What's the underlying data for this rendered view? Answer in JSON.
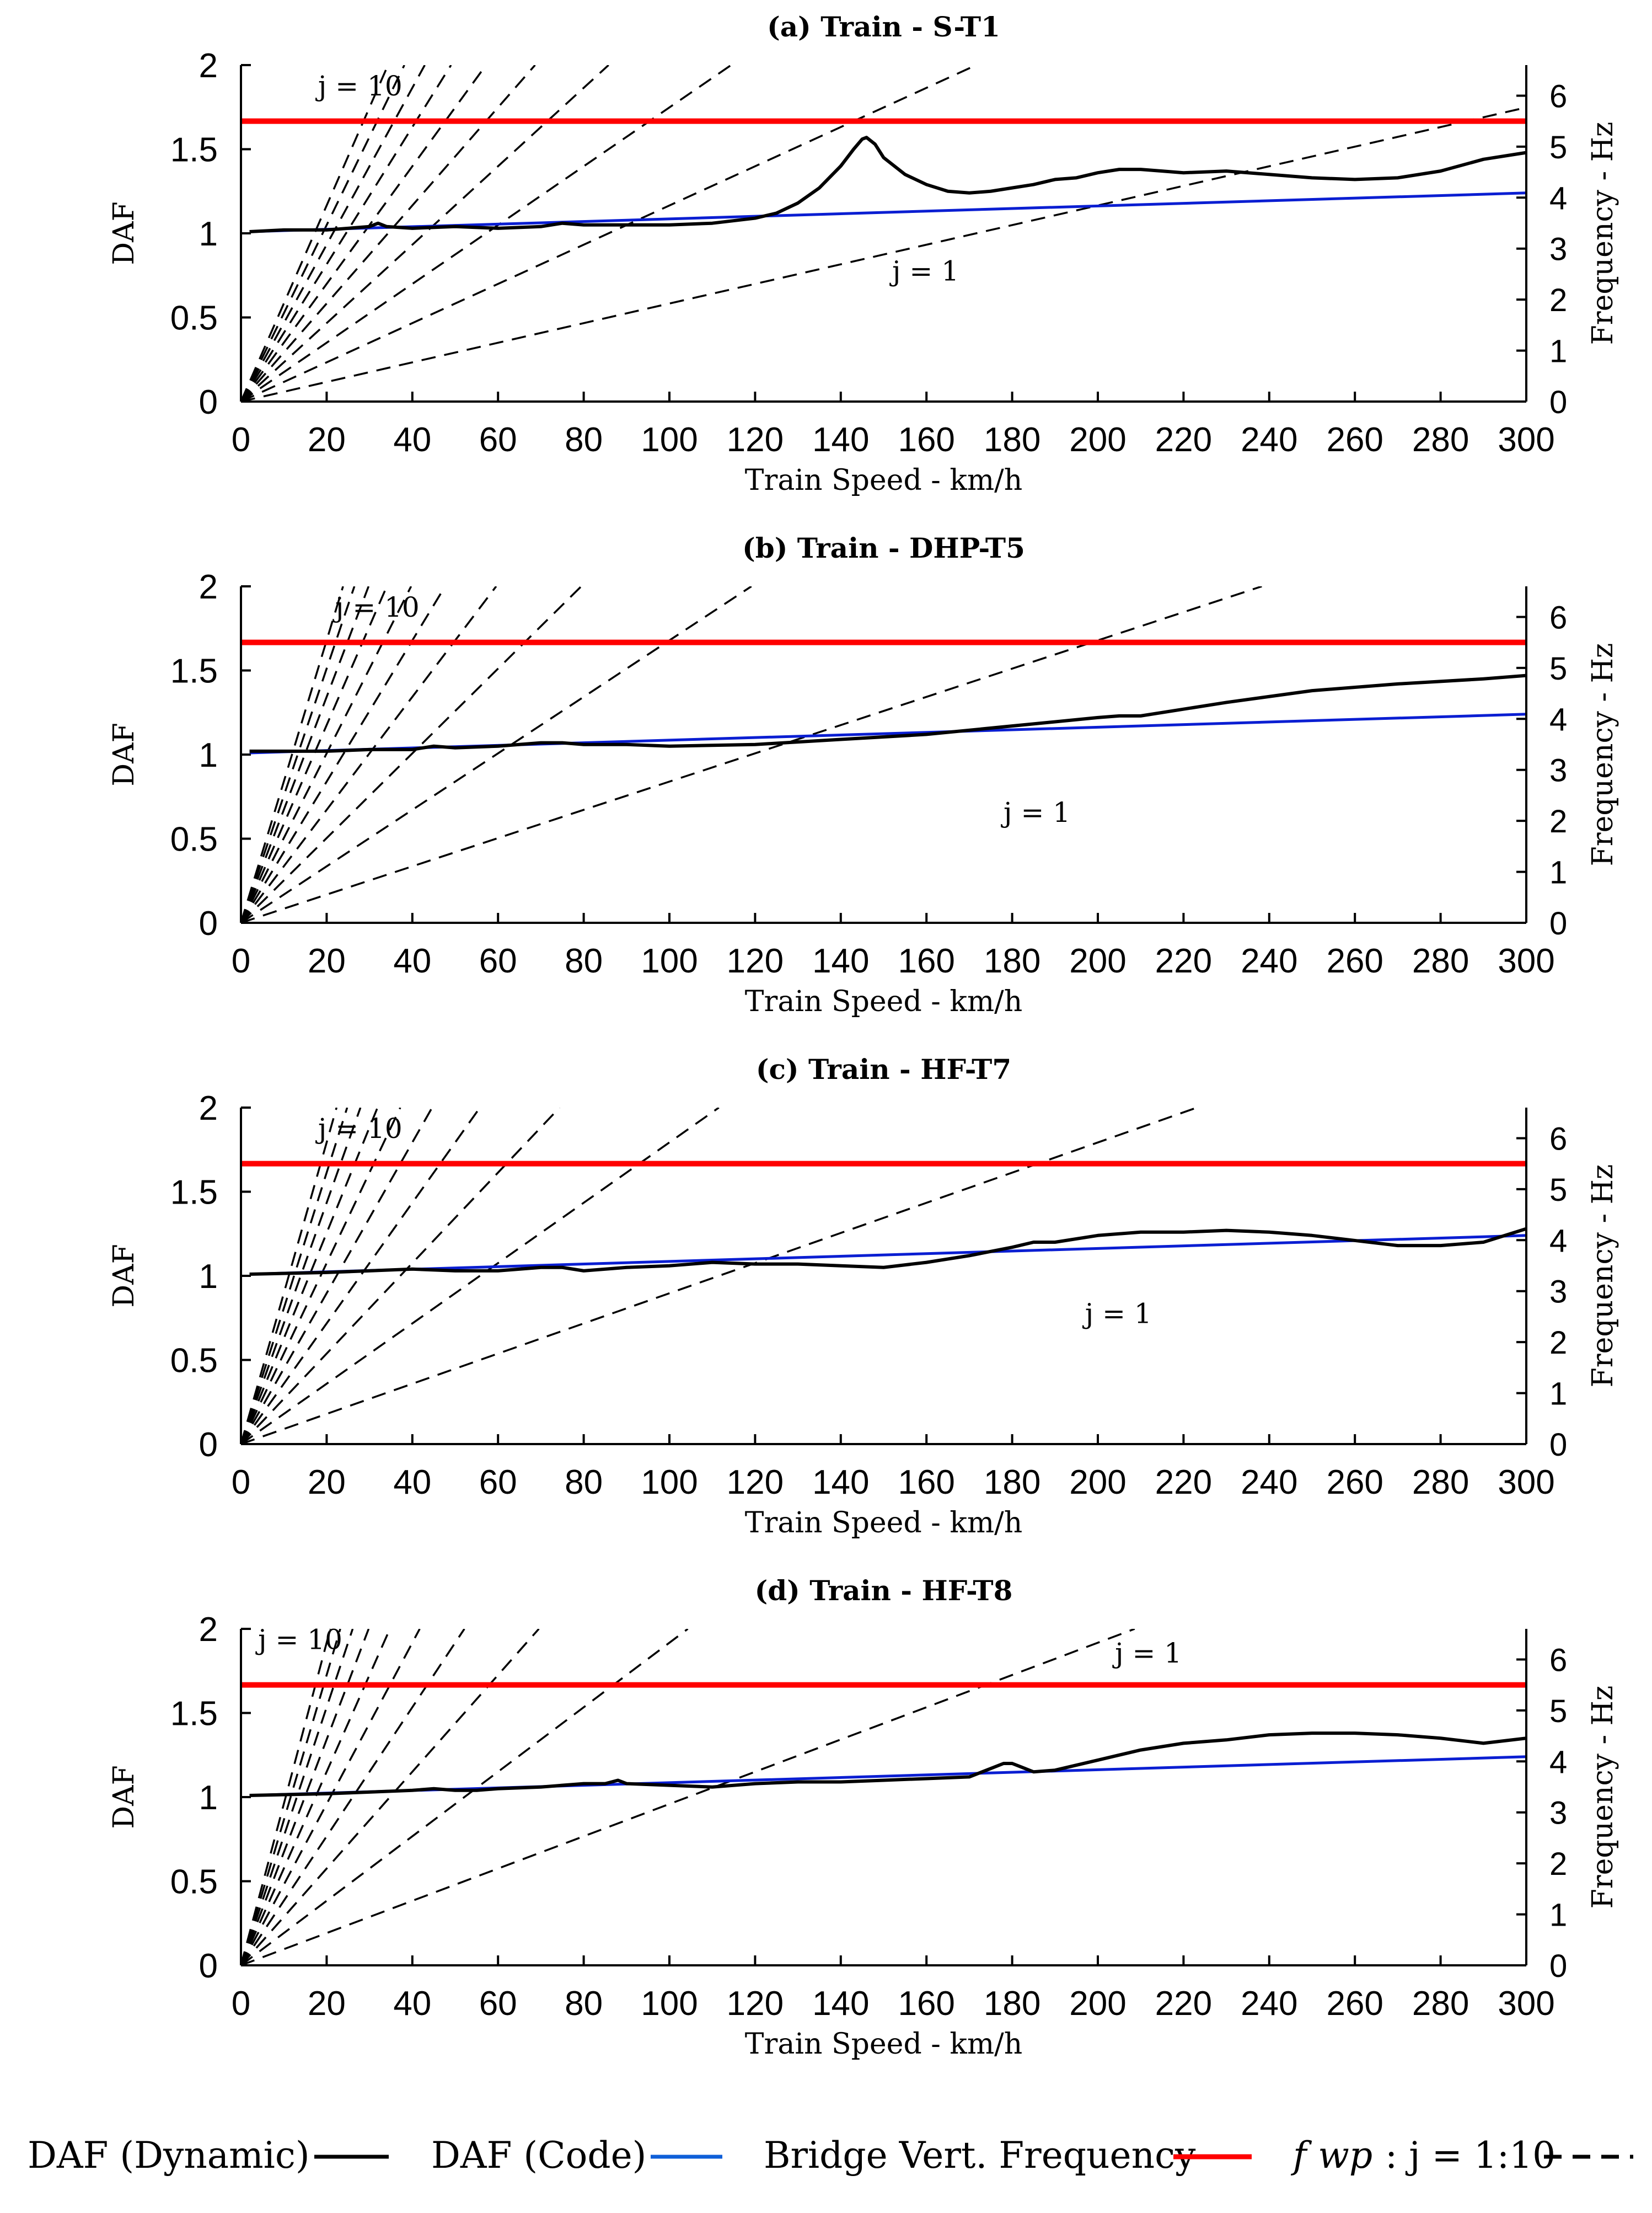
{
  "colors": {
    "dynamic": "#000000",
    "code": "#0a1ed2",
    "frequency": "#ff0000",
    "fwp": "#000000"
  },
  "legend": {
    "dynamic": "DAF (Dynamic)",
    "code": "DAF (Code)",
    "frequency": "Bridge Vert. Frequency",
    "fwp_symbol": "f wp",
    "fwp_rest": ": j = 1:10"
  },
  "chart_data": [
    {
      "type": "line",
      "title": "(a) Train - S-T1",
      "xlabel": "Train Speed - km/h",
      "ylabel": "DAF",
      "y2label": "Frequency - Hz",
      "xlim": [
        0,
        300
      ],
      "ylim": [
        0,
        2
      ],
      "y2lim": [
        0,
        6.6
      ],
      "xticks": [
        "0",
        "20",
        "40",
        "60",
        "80",
        "100",
        "120",
        "140",
        "160",
        "180",
        "200",
        "220",
        "240",
        "260",
        "280",
        "300"
      ],
      "yticks": [
        "0",
        "0.5",
        "1",
        "1.5",
        "2"
      ],
      "y2ticks": [
        "0",
        "1",
        "2",
        "3",
        "4",
        "5",
        "6"
      ],
      "bridge_frequency_hz": 5.5,
      "fwp_slopes_hz_per_kmh": [
        0.01923,
        0.03846,
        0.05769,
        0.07692,
        0.09615,
        0.11538,
        0.13462,
        0.15385,
        0.17308,
        0.19231
      ],
      "label_j10": "j = 10",
      "label_j1": "j = 1",
      "label_j10_pos": [
        18,
        1.82
      ],
      "label_j1_pos": [
        152,
        0.72
      ],
      "code": {
        "x": [
          2,
          300
        ],
        "y": [
          1.01,
          1.24
        ]
      },
      "dynamic": {
        "x": [
          2,
          10,
          20,
          30,
          32,
          34,
          40,
          50,
          60,
          70,
          75,
          80,
          90,
          100,
          110,
          120,
          125,
          130,
          135,
          140,
          143,
          145,
          146,
          148,
          150,
          155,
          160,
          165,
          170,
          175,
          180,
          185,
          190,
          195,
          200,
          205,
          210,
          215,
          220,
          230,
          240,
          250,
          260,
          270,
          280,
          290,
          300
        ],
        "y": [
          1.01,
          1.02,
          1.02,
          1.04,
          1.06,
          1.04,
          1.03,
          1.04,
          1.03,
          1.04,
          1.06,
          1.05,
          1.05,
          1.05,
          1.06,
          1.09,
          1.12,
          1.18,
          1.27,
          1.4,
          1.5,
          1.56,
          1.57,
          1.53,
          1.45,
          1.35,
          1.29,
          1.25,
          1.24,
          1.25,
          1.27,
          1.29,
          1.32,
          1.33,
          1.36,
          1.38,
          1.38,
          1.37,
          1.36,
          1.37,
          1.35,
          1.33,
          1.32,
          1.33,
          1.37,
          1.44,
          1.48
        ]
      }
    },
    {
      "type": "line",
      "title": "(b) Train - DHP-T5",
      "xlabel": "Train Speed - km/h",
      "ylabel": "DAF",
      "y2label": "Frequency - Hz",
      "xlim": [
        0,
        300
      ],
      "ylim": [
        0,
        2
      ],
      "y2lim": [
        0,
        6.6
      ],
      "xticks": [
        "0",
        "20",
        "40",
        "60",
        "80",
        "100",
        "120",
        "140",
        "160",
        "180",
        "200",
        "220",
        "240",
        "260",
        "280",
        "300"
      ],
      "yticks": [
        "0",
        "0.5",
        "1",
        "1.5",
        "2"
      ],
      "y2ticks": [
        "0",
        "1",
        "2",
        "3",
        "4",
        "5",
        "6"
      ],
      "bridge_frequency_hz": 5.5,
      "fwp_slopes_hz_per_kmh": [
        0.0277,
        0.0554,
        0.0831,
        0.1108,
        0.1385,
        0.1662,
        0.1939,
        0.2216,
        0.2493,
        0.277
      ],
      "label_j10": "j = 10",
      "label_j1": "j = 1",
      "label_j10_pos": [
        22,
        1.82
      ],
      "label_j1_pos": [
        178,
        0.6
      ],
      "code": {
        "x": [
          2,
          300
        ],
        "y": [
          1.01,
          1.24
        ]
      },
      "dynamic": {
        "x": [
          2,
          20,
          30,
          40,
          45,
          50,
          60,
          70,
          75,
          80,
          90,
          100,
          120,
          140,
          160,
          180,
          200,
          205,
          210,
          230,
          250,
          270,
          290,
          300
        ],
        "y": [
          1.02,
          1.02,
          1.03,
          1.03,
          1.05,
          1.04,
          1.05,
          1.07,
          1.07,
          1.06,
          1.06,
          1.05,
          1.06,
          1.09,
          1.12,
          1.17,
          1.22,
          1.23,
          1.23,
          1.31,
          1.38,
          1.42,
          1.45,
          1.47
        ]
      }
    },
    {
      "type": "line",
      "title": "(c) Train - HF-T7",
      "xlabel": "Train Speed - km/h",
      "ylabel": "DAF",
      "y2label": "Frequency - Hz",
      "xlim": [
        0,
        300
      ],
      "ylim": [
        0,
        2
      ],
      "y2lim": [
        0,
        6.6
      ],
      "xticks": [
        "0",
        "20",
        "40",
        "60",
        "80",
        "100",
        "120",
        "140",
        "160",
        "180",
        "200",
        "220",
        "240",
        "260",
        "280",
        "300"
      ],
      "yticks": [
        "0",
        "0.5",
        "1",
        "1.5",
        "2"
      ],
      "y2ticks": [
        "0",
        "1",
        "2",
        "3",
        "4",
        "5",
        "6"
      ],
      "bridge_frequency_hz": 5.5,
      "fwp_slopes_hz_per_kmh": [
        0.02958,
        0.05917,
        0.08875,
        0.11833,
        0.14792,
        0.1775,
        0.20708,
        0.23667,
        0.26625,
        0.29583
      ],
      "label_j10": "j = 10",
      "label_j1": "j = 1",
      "label_j10_pos": [
        18,
        1.82
      ],
      "label_j1_pos": [
        197,
        0.72
      ],
      "code": {
        "x": [
          2,
          300
        ],
        "y": [
          1.01,
          1.24
        ]
      },
      "dynamic": {
        "x": [
          2,
          20,
          30,
          40,
          50,
          60,
          70,
          75,
          80,
          90,
          100,
          110,
          120,
          130,
          140,
          150,
          160,
          170,
          180,
          185,
          190,
          200,
          210,
          220,
          230,
          240,
          250,
          260,
          270,
          280,
          290,
          300
        ],
        "y": [
          1.01,
          1.02,
          1.03,
          1.04,
          1.03,
          1.03,
          1.05,
          1.05,
          1.03,
          1.05,
          1.06,
          1.08,
          1.07,
          1.07,
          1.06,
          1.05,
          1.08,
          1.12,
          1.17,
          1.2,
          1.2,
          1.24,
          1.26,
          1.26,
          1.27,
          1.26,
          1.24,
          1.21,
          1.18,
          1.18,
          1.2,
          1.28
        ]
      }
    },
    {
      "type": "line",
      "title": "(d) Train - HF-T8",
      "xlabel": "Train Speed - km/h",
      "ylabel": "DAF",
      "y2label": "Frequency - Hz",
      "xlim": [
        0,
        300
      ],
      "ylim": [
        0,
        2
      ],
      "y2lim": [
        0,
        6.6
      ],
      "xticks": [
        "0",
        "20",
        "40",
        "60",
        "80",
        "100",
        "120",
        "140",
        "160",
        "180",
        "200",
        "220",
        "240",
        "260",
        "280",
        "300"
      ],
      "yticks": [
        "0",
        "0.5",
        "1",
        "1.5",
        "2"
      ],
      "y2ticks": [
        "0",
        "1",
        "2",
        "3",
        "4",
        "5",
        "6"
      ],
      "bridge_frequency_hz": 5.5,
      "fwp_slopes_hz_per_kmh": [
        0.03164,
        0.06328,
        0.09492,
        0.12656,
        0.1582,
        0.18984,
        0.22148,
        0.25312,
        0.28476,
        0.3164
      ],
      "label_j10": "j = 10",
      "label_j1": "j = 1",
      "label_j10_pos": [
        4,
        1.88
      ],
      "label_j1_pos": [
        204,
        1.8
      ],
      "code": {
        "x": [
          2,
          300
        ],
        "y": [
          1.01,
          1.24
        ]
      },
      "dynamic": {
        "x": [
          2,
          20,
          30,
          40,
          45,
          50,
          55,
          60,
          70,
          80,
          85,
          88,
          90,
          100,
          110,
          120,
          130,
          140,
          150,
          160,
          170,
          175,
          178,
          180,
          182,
          185,
          190,
          200,
          210,
          220,
          230,
          240,
          250,
          260,
          270,
          280,
          290,
          300
        ],
        "y": [
          1.01,
          1.02,
          1.03,
          1.04,
          1.05,
          1.04,
          1.04,
          1.05,
          1.06,
          1.08,
          1.08,
          1.1,
          1.08,
          1.07,
          1.06,
          1.08,
          1.09,
          1.09,
          1.1,
          1.11,
          1.12,
          1.17,
          1.2,
          1.2,
          1.18,
          1.15,
          1.16,
          1.22,
          1.28,
          1.32,
          1.34,
          1.37,
          1.38,
          1.38,
          1.37,
          1.35,
          1.32,
          1.35
        ]
      }
    }
  ]
}
